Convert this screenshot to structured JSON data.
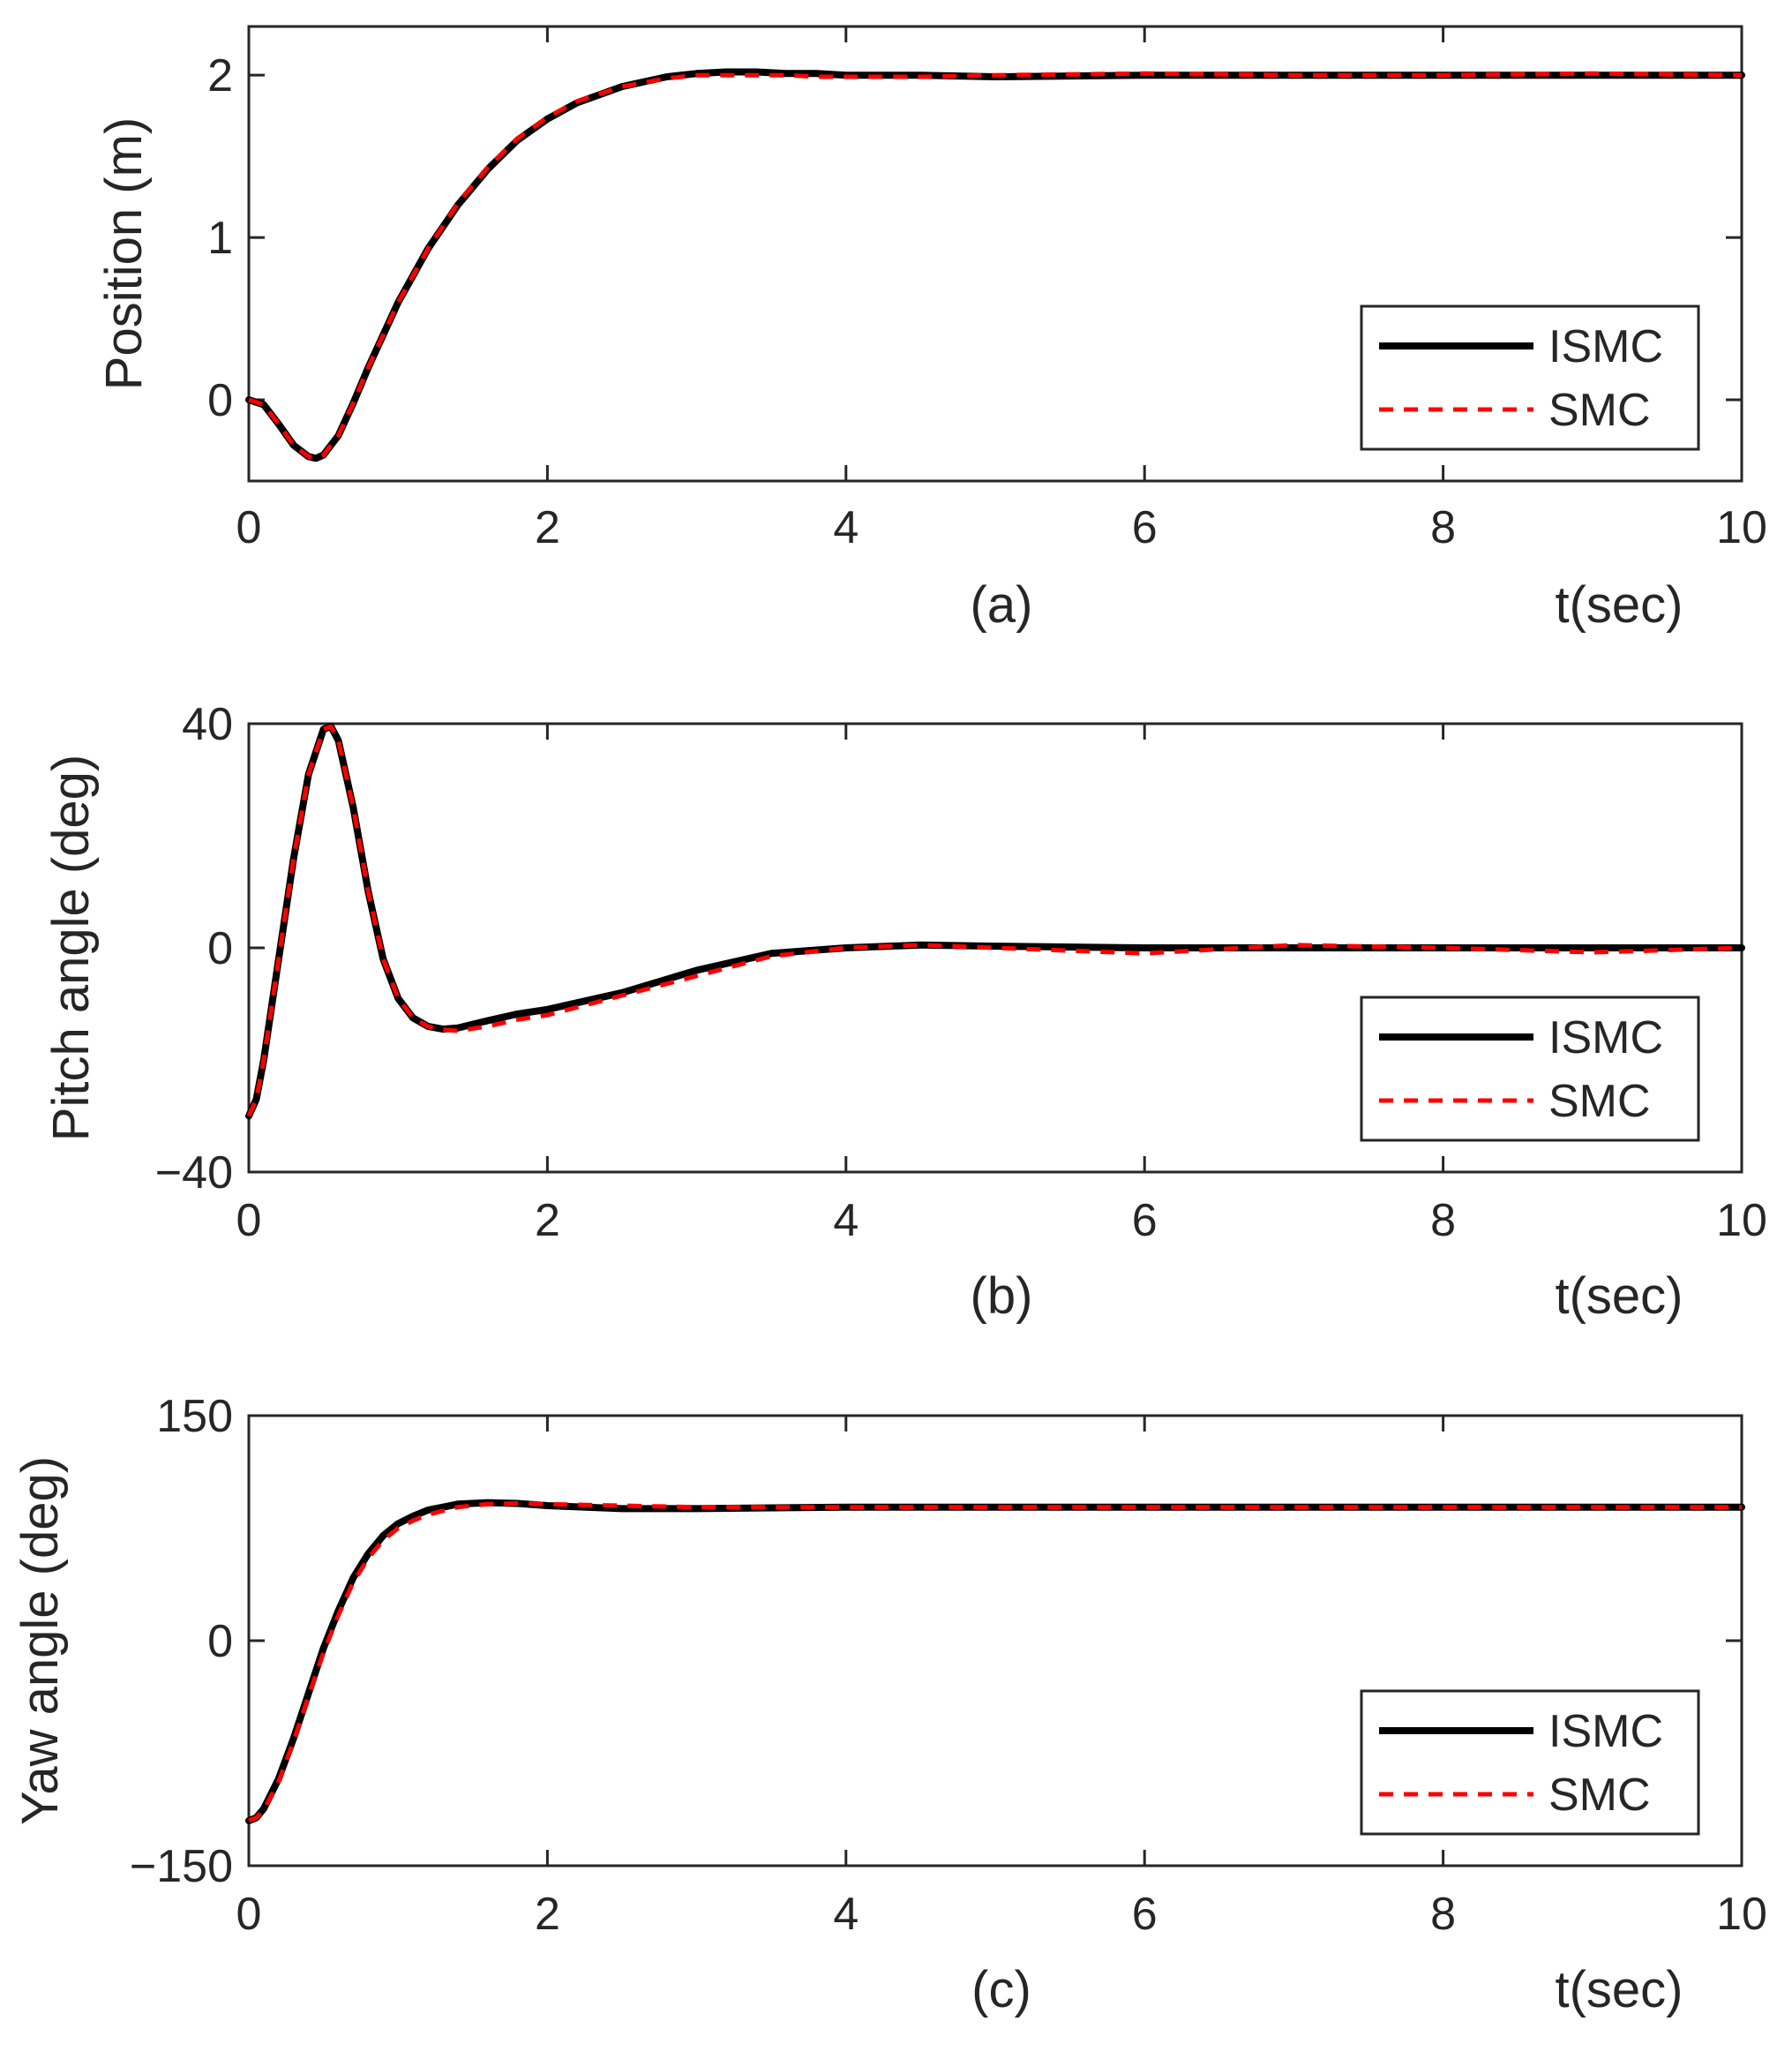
{
  "chart_data": [
    {
      "type": "line",
      "panel": "(a)",
      "xlabel": "t(sec)",
      "ylabel": "Position (m)",
      "xlim": [
        0,
        10
      ],
      "ylim": [
        -0.5,
        2.3
      ],
      "xticks": [
        0,
        2,
        4,
        6,
        8,
        10
      ],
      "yticks": [
        0,
        1,
        2
      ],
      "xtick_labels": [
        "0",
        "2",
        "4",
        "6",
        "8",
        "10"
      ],
      "ytick_labels": [
        "0",
        "1",
        "2"
      ],
      "legend": {
        "position": "bottom-right",
        "entries": [
          "ISMC",
          "SMC"
        ]
      },
      "series": [
        {
          "name": "ISMC",
          "color": "#000000",
          "style": "solid",
          "x": [
            0,
            0.1,
            0.2,
            0.3,
            0.4,
            0.45,
            0.5,
            0.6,
            0.7,
            0.8,
            1.0,
            1.2,
            1.4,
            1.6,
            1.8,
            2.0,
            2.2,
            2.5,
            2.8,
            3.0,
            3.2,
            3.4,
            3.6,
            3.8,
            4.0,
            4.5,
            5.0,
            6.0,
            7.0,
            8.0,
            9.0,
            10.0
          ],
          "y": [
            0,
            -0.03,
            -0.15,
            -0.28,
            -0.35,
            -0.36,
            -0.34,
            -0.22,
            -0.02,
            0.2,
            0.6,
            0.93,
            1.2,
            1.42,
            1.6,
            1.73,
            1.83,
            1.93,
            1.99,
            2.01,
            2.02,
            2.02,
            2.01,
            2.01,
            2.0,
            2.0,
            1.99,
            2.0,
            2.0,
            2.0,
            2.0,
            2.0
          ]
        },
        {
          "name": "SMC",
          "color": "#ff0000",
          "style": "dashed",
          "x": [
            0,
            0.1,
            0.2,
            0.3,
            0.4,
            0.45,
            0.5,
            0.6,
            0.7,
            0.8,
            1.0,
            1.2,
            1.4,
            1.6,
            1.8,
            2.0,
            2.2,
            2.5,
            2.8,
            3.0,
            3.2,
            3.4,
            3.6,
            3.8,
            4.0,
            4.5,
            5.0,
            6.0,
            7.0,
            8.0,
            9.0,
            10.0
          ],
          "y": [
            0,
            -0.03,
            -0.15,
            -0.28,
            -0.35,
            -0.36,
            -0.34,
            -0.22,
            -0.02,
            0.2,
            0.6,
            0.93,
            1.21,
            1.43,
            1.61,
            1.74,
            1.84,
            1.93,
            1.98,
            2.0,
            2.0,
            2.0,
            2.0,
            1.99,
            1.99,
            1.99,
            2.0,
            2.01,
            2.0,
            2.0,
            2.01,
            2.0
          ]
        }
      ]
    },
    {
      "type": "line",
      "panel": "(b)",
      "xlabel": "t(sec)",
      "ylabel": "Pitch angle (deg)",
      "xlim": [
        0,
        10
      ],
      "ylim": [
        -40,
        40
      ],
      "xticks": [
        0,
        2,
        4,
        6,
        8,
        10
      ],
      "yticks": [
        -40,
        0,
        40
      ],
      "xtick_labels": [
        "0",
        "2",
        "4",
        "6",
        "8",
        "10"
      ],
      "ytick_labels": [
        "−40",
        "0",
        "40"
      ],
      "legend": {
        "position": "bottom-right",
        "entries": [
          "ISMC",
          "SMC"
        ]
      },
      "series": [
        {
          "name": "ISMC",
          "color": "#000000",
          "style": "solid",
          "x": [
            0,
            0.05,
            0.1,
            0.2,
            0.3,
            0.4,
            0.5,
            0.55,
            0.6,
            0.7,
            0.8,
            0.9,
            1.0,
            1.1,
            1.2,
            1.3,
            1.4,
            1.6,
            1.8,
            2.0,
            2.5,
            3.0,
            3.5,
            4.0,
            4.5,
            5.0,
            6.0,
            7.0,
            8.0,
            9.0,
            10.0
          ],
          "y": [
            -30,
            -27,
            -20,
            -2,
            16,
            31,
            39,
            39.5,
            37,
            25,
            10,
            -2,
            -9,
            -12.5,
            -14,
            -14.5,
            -14.3,
            -13,
            -11.8,
            -11,
            -8,
            -4,
            -1,
            0,
            0.5,
            0.3,
            0,
            0,
            0,
            0,
            0
          ]
        },
        {
          "name": "SMC",
          "color": "#ff0000",
          "style": "dashed",
          "x": [
            0,
            0.05,
            0.1,
            0.2,
            0.3,
            0.4,
            0.5,
            0.55,
            0.6,
            0.7,
            0.8,
            0.9,
            1.0,
            1.1,
            1.2,
            1.3,
            1.4,
            1.6,
            1.8,
            2.0,
            2.5,
            3.0,
            3.5,
            4.0,
            4.5,
            5.0,
            6.0,
            7.0,
            8.0,
            9.0,
            10.0
          ],
          "y": [
            -30,
            -27,
            -20,
            -2,
            16,
            31,
            39,
            39.5,
            37,
            25,
            10,
            -2,
            -9,
            -12.5,
            -14,
            -14.6,
            -14.8,
            -14,
            -12.8,
            -12,
            -8.5,
            -5,
            -1.5,
            0,
            0.5,
            0,
            -1,
            0.5,
            0,
            -0.8,
            0
          ]
        }
      ]
    },
    {
      "type": "line",
      "panel": "(c)",
      "xlabel": "t(sec)",
      "ylabel": "Yaw angle (deg)",
      "xlim": [
        0,
        10
      ],
      "ylim": [
        -150,
        150
      ],
      "xticks": [
        0,
        2,
        4,
        6,
        8,
        10
      ],
      "yticks": [
        -150,
        0,
        150
      ],
      "xtick_labels": [
        "0",
        "2",
        "4",
        "6",
        "8",
        "10"
      ],
      "ytick_labels": [
        "−150",
        "0",
        "150"
      ],
      "legend": {
        "position": "bottom-right",
        "entries": [
          "ISMC",
          "SMC"
        ]
      },
      "series": [
        {
          "name": "ISMC",
          "color": "#000000",
          "style": "solid",
          "x": [
            0,
            0.05,
            0.1,
            0.2,
            0.3,
            0.4,
            0.5,
            0.6,
            0.7,
            0.8,
            0.9,
            1.0,
            1.1,
            1.2,
            1.4,
            1.6,
            1.8,
            2.0,
            2.5,
            3.0,
            4.0,
            5.0,
            6.0,
            8.0,
            10.0
          ],
          "y": [
            -120,
            -118,
            -112,
            -92,
            -65,
            -35,
            -5,
            20,
            42,
            58,
            70,
            78,
            83,
            87,
            91,
            92,
            91.5,
            90,
            88,
            88,
            89,
            89,
            89,
            89,
            89
          ]
        },
        {
          "name": "SMC",
          "color": "#ff0000",
          "style": "dashed",
          "x": [
            0,
            0.05,
            0.1,
            0.2,
            0.3,
            0.4,
            0.5,
            0.6,
            0.7,
            0.8,
            0.9,
            1.0,
            1.1,
            1.2,
            1.4,
            1.6,
            1.8,
            2.0,
            2.5,
            3.0,
            4.0,
            5.0,
            6.0,
            8.0,
            10.0
          ],
          "y": [
            -120,
            -118,
            -113,
            -94,
            -67,
            -37,
            -8,
            17,
            39,
            55,
            67,
            75,
            80,
            84,
            89,
            91,
            91.5,
            91,
            90,
            89,
            89,
            89,
            89,
            89,
            89
          ]
        }
      ]
    }
  ]
}
